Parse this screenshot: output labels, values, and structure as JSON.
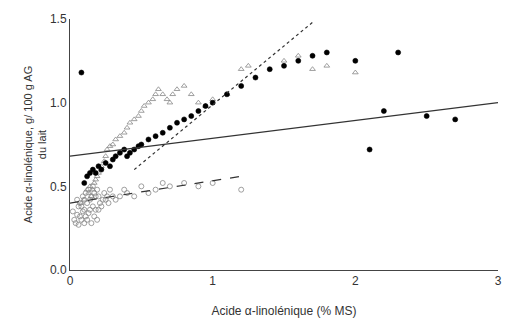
{
  "chart_data": {
    "type": "scatter",
    "xlabel": "Acide α-linolénique (% MS)",
    "ylabel": "Acide α-linolénique, g/ 100 g AG\ndu lait",
    "xlim": [
      0.0,
      3.0
    ],
    "ylim": [
      0.0,
      1.5
    ],
    "xticks": [
      0,
      1,
      2,
      3
    ],
    "yticks": [
      {
        "value": 0,
        "label": "0.0"
      },
      0.5,
      {
        "value": 1,
        "label": "1.0"
      },
      1.5
    ],
    "grid": false,
    "series": [
      {
        "type": "scatter",
        "marker": "circle-open",
        "color": "#888888",
        "x": [
          0.02,
          0.03,
          0.04,
          0.05,
          0.05,
          0.06,
          0.06,
          0.07,
          0.07,
          0.08,
          0.08,
          0.09,
          0.09,
          0.1,
          0.1,
          0.1,
          0.11,
          0.11,
          0.12,
          0.12,
          0.13,
          0.13,
          0.14,
          0.14,
          0.15,
          0.15,
          0.16,
          0.16,
          0.17,
          0.17,
          0.18,
          0.18,
          0.19,
          0.19,
          0.2,
          0.2,
          0.21,
          0.22,
          0.23,
          0.24,
          0.25,
          0.26,
          0.27,
          0.28,
          0.3,
          0.32,
          0.35,
          0.38,
          0.4,
          0.45,
          0.5,
          0.55,
          0.6,
          0.65,
          0.7,
          0.8,
          0.9,
          1.0,
          1.2
        ],
        "values": [
          0.35,
          0.3,
          0.28,
          0.33,
          0.42,
          0.27,
          0.38,
          0.32,
          0.4,
          0.3,
          0.38,
          0.35,
          0.44,
          0.28,
          0.36,
          0.42,
          0.32,
          0.46,
          0.3,
          0.4,
          0.34,
          0.48,
          0.36,
          0.42,
          0.28,
          0.44,
          0.38,
          0.5,
          0.32,
          0.46,
          0.36,
          0.44,
          0.3,
          0.48,
          0.36,
          0.44,
          0.4,
          0.38,
          0.42,
          0.46,
          0.42,
          0.44,
          0.4,
          0.48,
          0.44,
          0.42,
          0.44,
          0.48,
          0.46,
          0.44,
          0.5,
          0.46,
          0.48,
          0.52,
          0.5,
          0.52,
          0.5,
          0.52,
          0.48
        ]
      },
      {
        "type": "scatter",
        "marker": "triangle-up-open",
        "color": "#888888",
        "x": [
          0.08,
          0.1,
          0.12,
          0.13,
          0.14,
          0.15,
          0.16,
          0.17,
          0.18,
          0.19,
          0.2,
          0.22,
          0.24,
          0.25,
          0.26,
          0.28,
          0.3,
          0.32,
          0.35,
          0.38,
          0.4,
          0.42,
          0.45,
          0.48,
          0.5,
          0.52,
          0.55,
          0.58,
          0.6,
          0.62,
          0.65,
          0.68,
          0.7,
          0.72,
          0.75,
          0.8,
          0.85,
          0.9,
          0.95,
          1.0,
          1.1,
          1.2,
          1.25,
          1.5,
          1.6,
          1.7,
          1.8,
          2.0
        ],
        "values": [
          0.4,
          0.42,
          0.48,
          0.46,
          0.5,
          0.44,
          0.48,
          0.52,
          0.54,
          0.56,
          0.58,
          0.62,
          0.65,
          0.68,
          0.72,
          0.74,
          0.75,
          0.78,
          0.8,
          0.82,
          0.85,
          0.88,
          0.9,
          0.92,
          0.95,
          0.98,
          1.0,
          1.02,
          1.05,
          1.08,
          1.05,
          1.02,
          1.0,
          1.05,
          1.08,
          1.1,
          1.05,
          1.0,
          0.98,
          1.02,
          1.05,
          1.2,
          1.22,
          1.25,
          1.28,
          1.2,
          1.22,
          1.18
        ]
      },
      {
        "type": "scatter",
        "marker": "circle",
        "color": "#000000",
        "x": [
          0.08,
          0.1,
          0.12,
          0.14,
          0.16,
          0.18,
          0.2,
          0.22,
          0.25,
          0.28,
          0.3,
          0.32,
          0.35,
          0.38,
          0.4,
          0.42,
          0.45,
          0.48,
          0.5,
          0.55,
          0.6,
          0.65,
          0.7,
          0.75,
          0.8,
          0.85,
          0.9,
          0.95,
          1.0,
          1.1,
          1.2,
          1.3,
          1.4,
          1.5,
          1.6,
          1.7,
          1.8,
          2.0,
          2.1,
          2.2,
          2.3,
          2.5,
          2.7
        ],
        "values": [
          1.18,
          0.52,
          0.56,
          0.58,
          0.6,
          0.58,
          0.62,
          0.6,
          0.64,
          0.62,
          0.66,
          0.68,
          0.7,
          0.72,
          0.68,
          0.7,
          0.72,
          0.74,
          0.75,
          0.78,
          0.8,
          0.82,
          0.85,
          0.88,
          0.9,
          0.92,
          0.95,
          0.98,
          1.0,
          1.05,
          1.1,
          1.15,
          1.2,
          1.22,
          1.25,
          1.28,
          1.3,
          1.25,
          0.72,
          0.95,
          1.3,
          0.92,
          0.9
        ]
      },
      {
        "type": "line",
        "line_style": "solid",
        "color": "#333333",
        "x": [
          0.0,
          3.0
        ],
        "values": [
          0.68,
          1.0
        ]
      },
      {
        "type": "line",
        "line_style": "dashed",
        "color": "#333333",
        "x": [
          0.0,
          1.2
        ],
        "values": [
          0.4,
          0.56
        ]
      },
      {
        "type": "line",
        "line_style": "dotted",
        "color": "#333333",
        "x": [
          0.45,
          1.7
        ],
        "values": [
          0.6,
          1.48
        ]
      }
    ]
  }
}
